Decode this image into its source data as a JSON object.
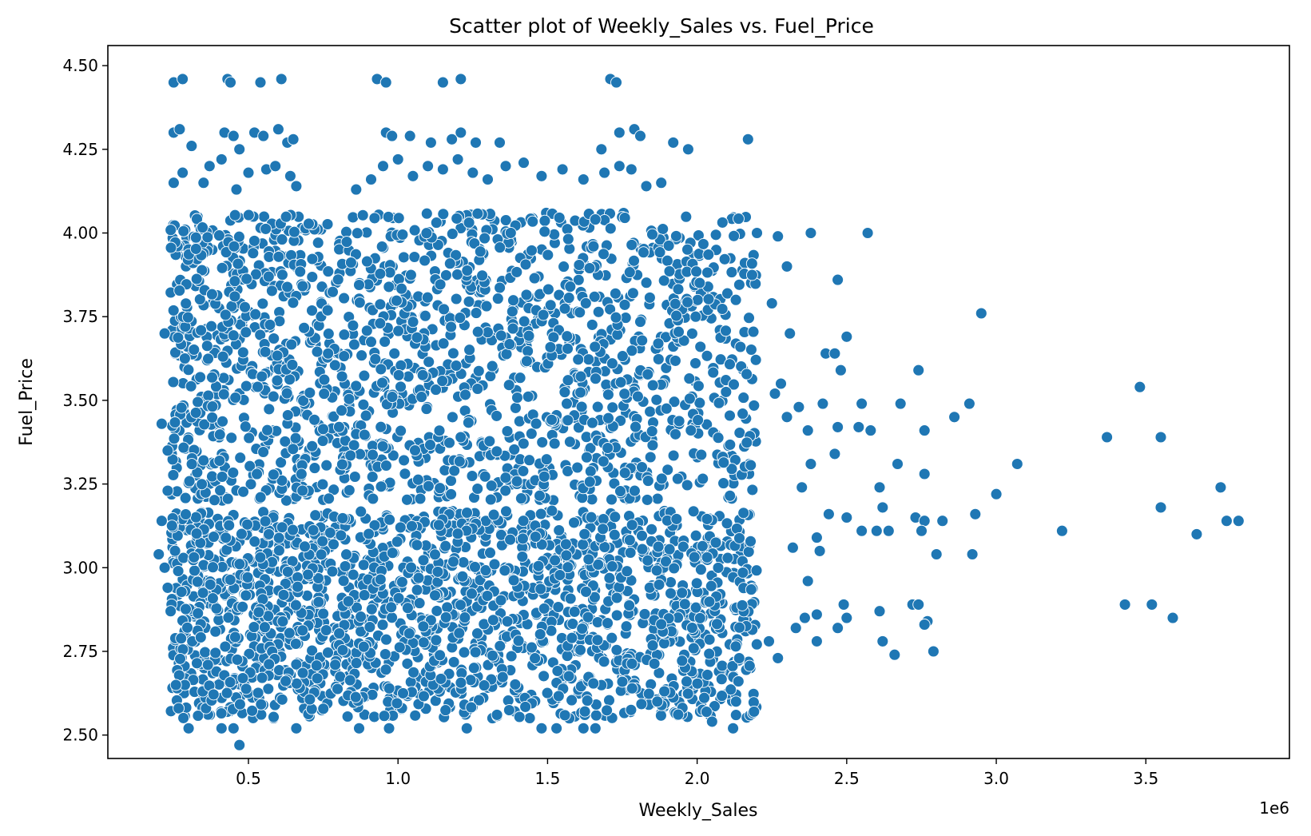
{
  "chart_data": {
    "type": "scatter",
    "title": "Scatter plot of Weekly_Sales vs. Fuel_Price",
    "xlabel": "Weekly_Sales",
    "ylabel": "Fuel_Price",
    "x_offset_label": "1e6",
    "xlim": [
      0.03,
      3.98
    ],
    "ylim": [
      2.43,
      4.56
    ],
    "x_ticks": [
      0.5,
      1.0,
      1.5,
      2.0,
      2.5,
      3.0,
      3.5
    ],
    "x_tick_labels": [
      "0.5",
      "1.0",
      "1.5",
      "2.0",
      "2.5",
      "3.0",
      "3.5"
    ],
    "y_ticks": [
      2.5,
      2.75,
      3.0,
      3.25,
      3.5,
      3.75,
      4.0,
      4.25,
      4.5
    ],
    "y_tick_labels": [
      "2.50",
      "2.75",
      "3.00",
      "3.25",
      "3.50",
      "3.75",
      "4.00",
      "4.25",
      "4.50"
    ],
    "grid": false,
    "marker_color": "#1f77b4",
    "marker_edge_color": "#ffffff",
    "x_units": "Weekly_Sales (×1e6)",
    "series": [
      {
        "points": [
          [
            0.25,
            4.45
          ],
          [
            0.28,
            4.46
          ],
          [
            0.43,
            4.46
          ],
          [
            0.44,
            4.45
          ],
          [
            0.54,
            4.45
          ],
          [
            0.61,
            4.46
          ],
          [
            0.93,
            4.46
          ],
          [
            0.96,
            4.45
          ],
          [
            1.15,
            4.45
          ],
          [
            1.21,
            4.46
          ],
          [
            1.71,
            4.46
          ],
          [
            1.73,
            4.45
          ],
          [
            0.25,
            4.3
          ],
          [
            0.27,
            4.31
          ],
          [
            0.31,
            4.26
          ],
          [
            0.42,
            4.3
          ],
          [
            0.45,
            4.29
          ],
          [
            0.47,
            4.25
          ],
          [
            0.52,
            4.3
          ],
          [
            0.55,
            4.29
          ],
          [
            0.6,
            4.31
          ],
          [
            0.63,
            4.27
          ],
          [
            0.65,
            4.28
          ],
          [
            0.96,
            4.3
          ],
          [
            0.98,
            4.29
          ],
          [
            1.04,
            4.29
          ],
          [
            1.11,
            4.27
          ],
          [
            1.18,
            4.28
          ],
          [
            1.21,
            4.3
          ],
          [
            1.26,
            4.27
          ],
          [
            1.34,
            4.27
          ],
          [
            1.68,
            4.25
          ],
          [
            1.74,
            4.3
          ],
          [
            1.79,
            4.31
          ],
          [
            1.81,
            4.29
          ],
          [
            1.92,
            4.27
          ],
          [
            1.97,
            4.25
          ],
          [
            2.17,
            4.28
          ],
          [
            0.25,
            4.15
          ],
          [
            0.28,
            4.18
          ],
          [
            0.35,
            4.15
          ],
          [
            0.37,
            4.2
          ],
          [
            0.41,
            4.22
          ],
          [
            0.46,
            4.13
          ],
          [
            0.5,
            4.18
          ],
          [
            0.56,
            4.19
          ],
          [
            0.59,
            4.2
          ],
          [
            0.64,
            4.17
          ],
          [
            0.66,
            4.14
          ],
          [
            0.86,
            4.13
          ],
          [
            0.91,
            4.16
          ],
          [
            0.95,
            4.2
          ],
          [
            1.0,
            4.22
          ],
          [
            1.05,
            4.17
          ],
          [
            1.1,
            4.2
          ],
          [
            1.15,
            4.19
          ],
          [
            1.2,
            4.22
          ],
          [
            1.25,
            4.18
          ],
          [
            1.3,
            4.16
          ],
          [
            1.36,
            4.2
          ],
          [
            1.42,
            4.21
          ],
          [
            1.48,
            4.17
          ],
          [
            1.55,
            4.19
          ],
          [
            1.62,
            4.16
          ],
          [
            1.69,
            4.18
          ],
          [
            1.74,
            4.2
          ],
          [
            1.78,
            4.19
          ],
          [
            1.83,
            4.14
          ],
          [
            1.88,
            4.15
          ],
          [
            2.2,
            4.0
          ],
          [
            2.27,
            3.99
          ],
          [
            2.38,
            4.0
          ],
          [
            2.57,
            4.0
          ],
          [
            2.47,
            3.86
          ],
          [
            2.3,
            3.9
          ],
          [
            2.95,
            3.76
          ],
          [
            2.25,
            3.79
          ],
          [
            2.31,
            3.7
          ],
          [
            2.43,
            3.64
          ],
          [
            2.46,
            3.64
          ],
          [
            2.5,
            3.69
          ],
          [
            2.48,
            3.59
          ],
          [
            2.74,
            3.59
          ],
          [
            2.28,
            3.55
          ],
          [
            2.26,
            3.52
          ],
          [
            2.34,
            3.48
          ],
          [
            2.42,
            3.49
          ],
          [
            2.55,
            3.49
          ],
          [
            2.68,
            3.49
          ],
          [
            2.91,
            3.49
          ],
          [
            2.86,
            3.45
          ],
          [
            2.3,
            3.45
          ],
          [
            2.37,
            3.41
          ],
          [
            2.47,
            3.42
          ],
          [
            2.54,
            3.42
          ],
          [
            2.58,
            3.41
          ],
          [
            2.76,
            3.41
          ],
          [
            3.48,
            3.54
          ],
          [
            3.37,
            3.39
          ],
          [
            3.55,
            3.39
          ],
          [
            2.46,
            3.34
          ],
          [
            2.38,
            3.31
          ],
          [
            2.67,
            3.31
          ],
          [
            3.07,
            3.31
          ],
          [
            2.76,
            3.28
          ],
          [
            2.35,
            3.24
          ],
          [
            2.61,
            3.24
          ],
          [
            3.0,
            3.22
          ],
          [
            3.75,
            3.24
          ],
          [
            2.44,
            3.16
          ],
          [
            2.5,
            3.15
          ],
          [
            2.62,
            3.18
          ],
          [
            2.93,
            3.16
          ],
          [
            3.55,
            3.18
          ],
          [
            2.73,
            3.15
          ],
          [
            2.76,
            3.14
          ],
          [
            2.82,
            3.14
          ],
          [
            3.77,
            3.14
          ],
          [
            3.81,
            3.14
          ],
          [
            2.55,
            3.11
          ],
          [
            2.6,
            3.11
          ],
          [
            2.64,
            3.11
          ],
          [
            2.75,
            3.11
          ],
          [
            3.22,
            3.11
          ],
          [
            3.67,
            3.1
          ],
          [
            2.4,
            3.09
          ],
          [
            2.41,
            3.05
          ],
          [
            2.32,
            3.06
          ],
          [
            2.8,
            3.04
          ],
          [
            2.92,
            3.04
          ],
          [
            2.37,
            2.96
          ],
          [
            2.36,
            2.85
          ],
          [
            2.4,
            2.86
          ],
          [
            2.49,
            2.89
          ],
          [
            2.47,
            2.82
          ],
          [
            2.5,
            2.85
          ],
          [
            2.61,
            2.87
          ],
          [
            2.72,
            2.89
          ],
          [
            2.74,
            2.89
          ],
          [
            2.77,
            2.84
          ],
          [
            2.76,
            2.83
          ],
          [
            3.43,
            2.89
          ],
          [
            3.52,
            2.89
          ],
          [
            3.59,
            2.85
          ],
          [
            2.4,
            2.78
          ],
          [
            2.62,
            2.78
          ],
          [
            2.66,
            2.74
          ],
          [
            2.79,
            2.75
          ],
          [
            2.33,
            2.82
          ],
          [
            2.27,
            2.73
          ],
          [
            2.24,
            2.78
          ],
          [
            2.13,
            2.6
          ],
          [
            2.12,
            2.52
          ],
          [
            2.05,
            2.54
          ],
          [
            2.13,
            2.56
          ],
          [
            2.19,
            2.57
          ],
          [
            0.2,
            3.04
          ],
          [
            0.21,
            3.14
          ],
          [
            0.21,
            3.43
          ],
          [
            0.22,
            3.7
          ],
          [
            0.23,
            3.23
          ],
          [
            0.23,
            2.94
          ],
          [
            0.24,
            2.87
          ],
          [
            0.23,
            3.35
          ],
          [
            0.22,
            3.0
          ],
          [
            0.47,
            2.47
          ],
          [
            0.45,
            2.52
          ],
          [
            0.41,
            2.52
          ],
          [
            0.3,
            2.52
          ],
          [
            0.66,
            2.52
          ],
          [
            0.87,
            2.52
          ],
          [
            0.97,
            2.52
          ],
          [
            1.23,
            2.52
          ],
          [
            1.48,
            2.52
          ],
          [
            1.53,
            2.52
          ],
          [
            1.62,
            2.52
          ],
          [
            1.66,
            2.52
          ]
        ]
      }
    ]
  }
}
